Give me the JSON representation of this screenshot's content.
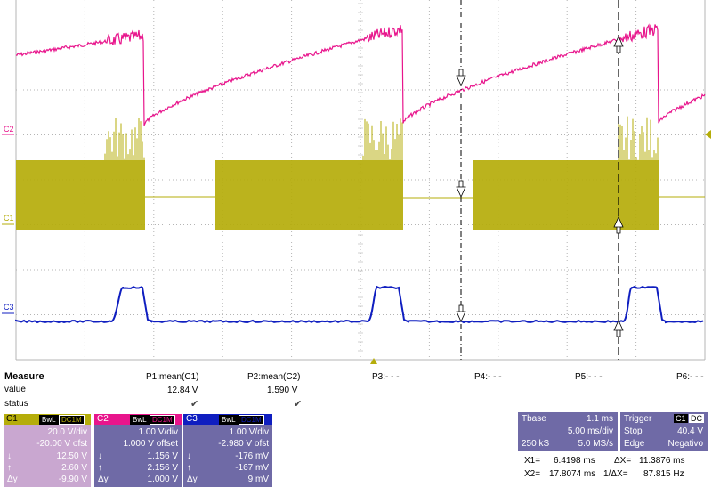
{
  "channels": {
    "c1": {
      "label": "C1",
      "color": "#b5ad0a"
    },
    "c2": {
      "label": "C2",
      "color": "#e8158c"
    },
    "c3": {
      "label": "C3",
      "color": "#0f1ec0"
    }
  },
  "markers": {
    "p3": "P3:- - -",
    "p4": "P4:- - -",
    "p5": "P5:- - -",
    "p6": "P6:- - -"
  },
  "measure": {
    "title": "Measure",
    "row_value": "value",
    "row_status": "status",
    "p1": {
      "name": "P1:mean(C1)",
      "value": "12.84 V"
    },
    "p2": {
      "name": "P2:mean(C2)",
      "value": "1.590 V"
    }
  },
  "channel_boxes": [
    {
      "name": "C1",
      "tag1": "BwL",
      "tag2": "DC1M",
      "vdiv": "20.0 V/div",
      "ofst": "-20.00 V ofst",
      "r1k": "↓",
      "r1v": "12.50 V",
      "r2k": "↑",
      "r2v": "2.60 V",
      "r3k": "Δy",
      "r3v": "-9.90 V"
    },
    {
      "name": "C2",
      "tag1": "BwL",
      "tag2": "DC1M",
      "vdiv": "1.00 V/div",
      "ofst": "1.000 V offset",
      "r1k": "↓",
      "r1v": "1.156 V",
      "r2k": "↑",
      "r2v": "2.156 V",
      "r3k": "Δy",
      "r3v": "1.000 V"
    },
    {
      "name": "C3",
      "tag1": "BwL",
      "tag2": "DC1M",
      "vdiv": "1.00 V/div",
      "ofst": "-2.980 V ofst",
      "r1k": "↓",
      "r1v": "-176 mV",
      "r2k": "↑",
      "r2v": "-167 mV",
      "r3k": "Δy",
      "r3v": "9 mV"
    }
  ],
  "timebase": {
    "title": "Tbase",
    "value": "1.1 ms",
    "div": "5.00 ms/div",
    "samples": "250 kS",
    "rate": "5.0 MS/s"
  },
  "trigger": {
    "title": "Trigger",
    "ch": "C1",
    "coupling": "DC",
    "mode": "Stop",
    "level": "40.4 V",
    "type": "Edge",
    "slope": "Negativo"
  },
  "cursors": {
    "x1_label": "X1=",
    "x1": "6.4198 ms",
    "dx_label": "ΔX=",
    "dx": "11.3876 ms",
    "x2_label": "X2=",
    "x2": "17.8074 ms",
    "idx_label": "1/ΔX=",
    "idx": "87.815 Hz"
  },
  "colors": {
    "box1": "#c9a7d0",
    "box2": "#6f6aa6",
    "box3": "#6f6aa6",
    "grid": "#b4b4b4"
  }
}
